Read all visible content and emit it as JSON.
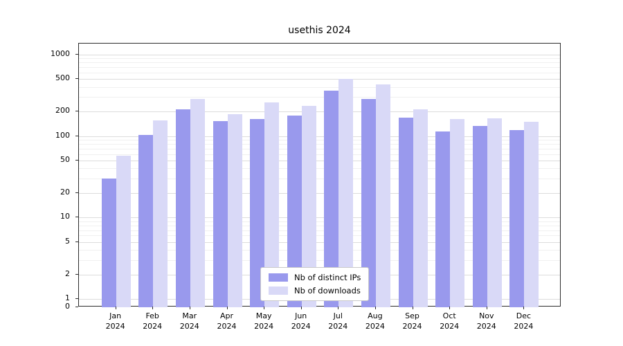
{
  "chart_data": {
    "type": "bar",
    "title": "usethis 2024",
    "categories": [
      "Jan",
      "Feb",
      "Mar",
      "Apr",
      "May",
      "Jun",
      "Jul",
      "Aug",
      "Sep",
      "Oct",
      "Nov",
      "Dec"
    ],
    "year": "2024",
    "series": [
      {
        "name": "Nb of distinct IPs",
        "color": "#9999ed",
        "values": [
          30,
          103,
          215,
          152,
          163,
          178,
          360,
          288,
          168,
          115,
          132,
          118
        ]
      },
      {
        "name": "Nb of downloads",
        "color": "#d9d9f7",
        "values": [
          57,
          157,
          288,
          186,
          258,
          235,
          500,
          430,
          215,
          162,
          165,
          150
        ]
      }
    ],
    "y_ticks": [
      0,
      1,
      2,
      5,
      10,
      20,
      50,
      100,
      200,
      500,
      1000
    ],
    "y_scale": "log",
    "ylim": [
      0,
      1000
    ],
    "grid": true,
    "legend_position": "bottom-center"
  }
}
